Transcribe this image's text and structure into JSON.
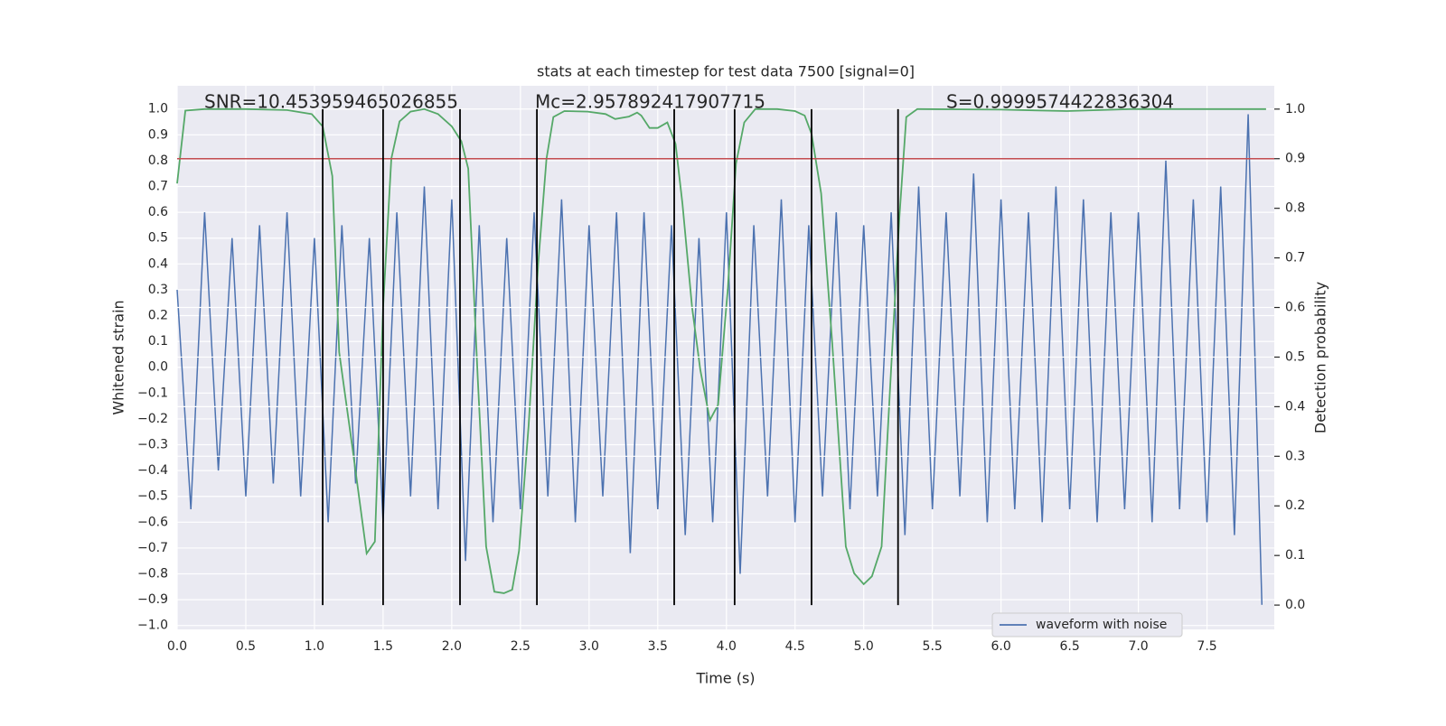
{
  "chart_data": {
    "type": "line",
    "title": "stats at each timestep for test data 7500 [signal=0]",
    "xlabel": "Time (s)",
    "ylabel": "Whitened strain",
    "y2label": "Detection probability",
    "annotations": [
      "SNR=10.453959465026855",
      "Mc=2.957892417907715",
      "S=0.9999574422836304"
    ],
    "xlim": [
      0,
      7.99
    ],
    "ylim": [
      -1.015,
      1.09
    ],
    "y2lim": [
      -0.049,
      1.047
    ],
    "grid": true,
    "legend": "lower right",
    "xticks": [
      {
        "value": 0,
        "label": "0.0"
      },
      0.5,
      {
        "value": 1,
        "label": "1.0"
      },
      1.5,
      {
        "value": 2,
        "label": "2.0"
      },
      2.5,
      {
        "value": 3,
        "label": "3.0"
      },
      3.5,
      {
        "value": 4,
        "label": "4.0"
      },
      4.5,
      {
        "value": 5,
        "label": "5.0"
      },
      5.5,
      {
        "value": 6,
        "label": "6.0"
      },
      6.5,
      {
        "value": 7,
        "label": "7.0"
      },
      7.5
    ],
    "yticks": [
      {
        "value": -1,
        "label": "−1.0"
      },
      {
        "value": -0.9,
        "label": "−0.9"
      },
      {
        "value": -0.8,
        "label": "−0.8"
      },
      {
        "value": -0.7,
        "label": "−0.7"
      },
      {
        "value": -0.6,
        "label": "−0.6"
      },
      {
        "value": -0.5,
        "label": "−0.5"
      },
      {
        "value": -0.4,
        "label": "−0.4"
      },
      {
        "value": -0.3,
        "label": "−0.3"
      },
      {
        "value": -0.2,
        "label": "−0.2"
      },
      {
        "value": -0.1,
        "label": "−0.1"
      },
      {
        "value": 0,
        "label": "0.0"
      },
      0.1,
      0.2,
      0.3,
      0.4,
      0.5,
      0.6,
      0.7,
      0.8,
      0.9,
      {
        "value": 1,
        "label": "1.0"
      }
    ],
    "y2ticks": [
      {
        "value": 0,
        "label": "0.0"
      },
      0.1,
      0.2,
      0.3,
      0.4,
      0.5,
      0.6,
      0.7,
      0.8,
      0.9,
      {
        "value": 1,
        "label": "1.0"
      }
    ],
    "series": [
      {
        "name": "waveform with noise",
        "color": "#4c72b0",
        "x": [
          0.0,
          0.1,
          0.2,
          0.3,
          0.4,
          0.5,
          0.6,
          0.7,
          0.8,
          0.9,
          1.0,
          1.1,
          1.2,
          1.3,
          1.4,
          1.5,
          1.6,
          1.7,
          1.8,
          1.9,
          2.0,
          2.1,
          2.2,
          2.3,
          2.4,
          2.5,
          2.6,
          2.7,
          2.8,
          2.9,
          3.0,
          3.1,
          3.2,
          3.3,
          3.4,
          3.5,
          3.6,
          3.7,
          3.8,
          3.9,
          4.0,
          4.1,
          4.2,
          4.3,
          4.4,
          4.5,
          4.6,
          4.7,
          4.8,
          4.9,
          5.0,
          5.1,
          5.2,
          5.3,
          5.4,
          5.5,
          5.6,
          5.7,
          5.8,
          5.9,
          6.0,
          6.1,
          6.2,
          6.3,
          6.4,
          6.5,
          6.6,
          6.7,
          6.8,
          6.9,
          7.0,
          7.1,
          7.2,
          7.3,
          7.4,
          7.5,
          7.6,
          7.7,
          7.8,
          7.9
        ],
        "values": [
          0.3,
          -0.55,
          0.6,
          -0.4,
          0.5,
          -0.5,
          0.55,
          -0.45,
          0.6,
          -0.5,
          0.5,
          -0.6,
          0.55,
          -0.45,
          0.5,
          -0.6,
          0.6,
          -0.5,
          0.7,
          -0.55,
          0.65,
          -0.75,
          0.55,
          -0.6,
          0.5,
          -0.55,
          0.6,
          -0.5,
          0.65,
          -0.6,
          0.55,
          -0.5,
          0.6,
          -0.72,
          0.6,
          -0.55,
          0.55,
          -0.65,
          0.5,
          -0.6,
          0.6,
          -0.8,
          0.55,
          -0.5,
          0.65,
          -0.6,
          0.55,
          -0.5,
          0.6,
          -0.55,
          0.55,
          -0.5,
          0.6,
          -0.65,
          0.7,
          -0.55,
          0.6,
          -0.5,
          0.75,
          -0.6,
          0.65,
          -0.55,
          0.6,
          -0.6,
          0.7,
          -0.55,
          0.65,
          -0.6,
          0.6,
          -0.55,
          0.6,
          -0.6,
          0.8,
          -0.55,
          0.65,
          -0.6,
          0.7,
          -0.65,
          0.98,
          -0.92
        ]
      },
      {
        "color": "#55a868",
        "axis": "y2",
        "x": [
          0,
          0.06,
          0.2,
          0.5,
          0.8,
          0.98,
          1.06,
          1.13,
          1.18,
          1.28,
          1.38,
          1.44,
          1.5,
          1.56,
          1.62,
          1.7,
          1.8,
          1.9,
          2.0,
          2.07,
          2.12,
          2.19,
          2.25,
          2.31,
          2.38,
          2.44,
          2.49,
          2.56,
          2.63,
          2.69,
          2.74,
          2.82,
          2.99,
          3.12,
          3.19,
          3.29,
          3.35,
          3.38,
          3.44,
          3.5,
          3.57,
          3.63,
          3.68,
          3.75,
          3.81,
          3.88,
          3.94,
          4.01,
          4.07,
          4.13,
          4.21,
          4.37,
          4.5,
          4.57,
          4.62,
          4.69,
          4.77,
          4.87,
          4.93,
          5.0,
          5.06,
          5.13,
          5.19,
          5.26,
          5.31,
          5.39,
          6.0,
          6.48,
          6.94,
          7.93
        ],
        "values": [
          0.85,
          0.997,
          1.0,
          1.0,
          0.998,
          0.99,
          0.965,
          0.865,
          0.51,
          0.31,
          0.104,
          0.128,
          0.6,
          0.9,
          0.975,
          0.995,
          1.0,
          0.99,
          0.965,
          0.935,
          0.88,
          0.455,
          0.118,
          0.027,
          0.024,
          0.031,
          0.109,
          0.364,
          0.69,
          0.9,
          0.984,
          0.996,
          0.995,
          0.99,
          0.98,
          0.985,
          0.993,
          0.987,
          0.962,
          0.962,
          0.973,
          0.93,
          0.81,
          0.6,
          0.474,
          0.373,
          0.404,
          0.638,
          0.89,
          0.973,
          1.0,
          1.0,
          0.996,
          0.987,
          0.95,
          0.83,
          0.53,
          0.118,
          0.064,
          0.042,
          0.058,
          0.118,
          0.428,
          0.783,
          0.984,
          1.0,
          0.999,
          0.996,
          1.0,
          1.0
        ]
      }
    ],
    "hlines": [
      {
        "value": 0.9,
        "axis": "y2",
        "color": "#c44e52"
      }
    ],
    "vlines": {
      "x": [
        1.06,
        1.5,
        2.06,
        2.62,
        3.62,
        4.06,
        4.62,
        5.25
      ],
      "axis": "y2",
      "range": [
        0,
        1
      ],
      "color": "#000000"
    }
  }
}
